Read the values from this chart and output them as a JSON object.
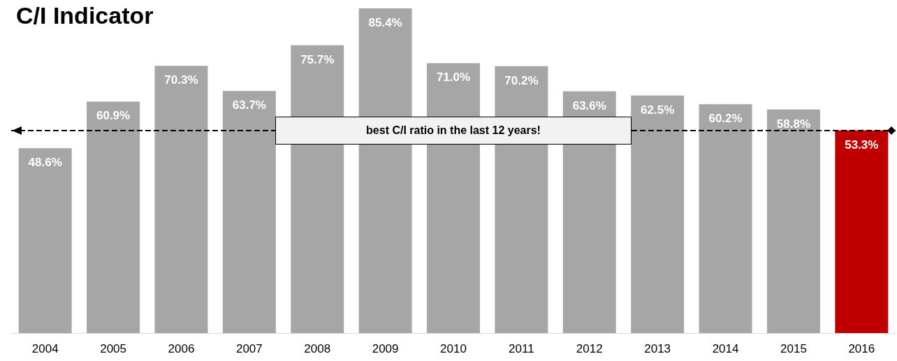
{
  "chart_data": {
    "type": "bar",
    "title": "C/I Indicator",
    "categories": [
      "2004",
      "2005",
      "2006",
      "2007",
      "2008",
      "2009",
      "2010",
      "2011",
      "2012",
      "2013",
      "2014",
      "2015",
      "2016"
    ],
    "values": [
      48.6,
      60.9,
      70.3,
      63.7,
      75.7,
      85.4,
      71.0,
      70.2,
      63.6,
      62.5,
      60.2,
      58.8,
      53.3
    ],
    "colors": [
      "#a6a6a6",
      "#a6a6a6",
      "#a6a6a6",
      "#a6a6a6",
      "#a6a6a6",
      "#a6a6a6",
      "#a6a6a6",
      "#a6a6a6",
      "#a6a6a6",
      "#a6a6a6",
      "#a6a6a6",
      "#a6a6a6",
      "#c00000"
    ],
    "value_labels": [
      "48.6%",
      "60.9%",
      "70.3%",
      "63.7%",
      "75.7%",
      "85.4%",
      "71.0%",
      "70.2%",
      "63.6%",
      "62.5%",
      "60.2%",
      "58.8%",
      "53.3%"
    ],
    "ref_lines": [
      {
        "axis": "y",
        "value": 53.3,
        "label": "best C/I ratio in the last 12 years!",
        "color": "#000000",
        "line_style": "dashed"
      }
    ]
  }
}
